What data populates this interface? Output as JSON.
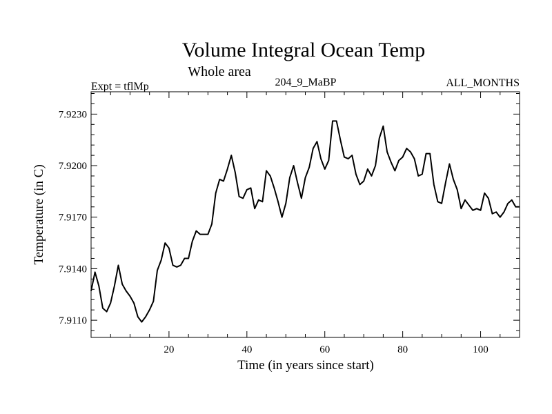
{
  "chart_data": {
    "type": "line",
    "title": "Volume Integral Ocean Temp",
    "subtitle": "Whole area",
    "left_label": "Expt = tflMp",
    "center_label": "204_9_MaBP",
    "right_label": "ALL_MONTHS",
    "xlabel": "Time (in years since start)",
    "ylabel": "Temperature (in C)",
    "xlim": [
      0,
      110
    ],
    "ylim": [
      7.91,
      7.9243
    ],
    "xticks": [
      20,
      40,
      60,
      80,
      100
    ],
    "xtick_labels": [
      "20",
      "40",
      "60",
      "80",
      "100"
    ],
    "yticks": [
      7.911,
      7.914,
      7.917,
      7.92,
      7.923
    ],
    "ytick_labels": [
      "7.9110",
      "7.9140",
      "7.9170",
      "7.9200",
      "7.9230"
    ],
    "series": [
      {
        "name": "Volume Integral Ocean Temp",
        "color": "#000000",
        "x": [
          0,
          1,
          2,
          3,
          4,
          5,
          6,
          7,
          8,
          9,
          10,
          11,
          12,
          13,
          14,
          15,
          16,
          17,
          18,
          19,
          20,
          21,
          22,
          23,
          24,
          25,
          26,
          27,
          28,
          29,
          30,
          31,
          32,
          33,
          34,
          35,
          36,
          37,
          38,
          39,
          40,
          41,
          42,
          43,
          44,
          45,
          46,
          47,
          48,
          49,
          50,
          51,
          52,
          53,
          54,
          55,
          56,
          57,
          58,
          59,
          60,
          61,
          62,
          63,
          64,
          65,
          66,
          67,
          68,
          69,
          70,
          71,
          72,
          73,
          74,
          75,
          76,
          77,
          78,
          79,
          80,
          81,
          82,
          83,
          84,
          85,
          86,
          87,
          88,
          89,
          90,
          91,
          92,
          93,
          94,
          95,
          96,
          97,
          98,
          99,
          100,
          101,
          102,
          103,
          104,
          105,
          106,
          107,
          108,
          109,
          110
        ],
        "values": [
          7.9127,
          7.9138,
          7.913,
          7.9117,
          7.9115,
          7.912,
          7.913,
          7.9142,
          7.9131,
          7.9127,
          7.9124,
          7.912,
          7.9112,
          7.9109,
          7.9112,
          7.9116,
          7.9121,
          7.9139,
          7.9145,
          7.9155,
          7.9152,
          7.9142,
          7.9141,
          7.9142,
          7.9146,
          7.9146,
          7.9156,
          7.9162,
          7.916,
          7.916,
          7.916,
          7.9166,
          7.9184,
          7.9192,
          7.9191,
          7.9198,
          7.9206,
          7.9196,
          7.9182,
          7.9181,
          7.9186,
          7.9187,
          7.9175,
          7.918,
          7.9179,
          7.9197,
          7.9194,
          7.9187,
          7.9179,
          7.917,
          7.9178,
          7.9193,
          7.92,
          7.919,
          7.9181,
          7.9193,
          7.9199,
          7.921,
          7.9214,
          7.9204,
          7.9198,
          7.9203,
          7.9226,
          7.9226,
          7.9215,
          7.9205,
          7.9204,
          7.9206,
          7.9195,
          7.9189,
          7.9191,
          7.9198,
          7.9194,
          7.92,
          7.9216,
          7.9223,
          7.9208,
          7.9202,
          7.9197,
          7.9203,
          7.9205,
          7.921,
          7.9208,
          7.9204,
          7.9194,
          7.9195,
          7.9207,
          7.9207,
          7.9189,
          7.9179,
          7.9178,
          7.919,
          7.9201,
          7.9192,
          7.9186,
          7.9175,
          7.918,
          7.9177,
          7.9174,
          7.9175,
          7.9174,
          7.9184,
          7.9181,
          7.9172,
          7.9173,
          7.917,
          7.9173,
          7.9178,
          7.918,
          7.9176,
          7.9176
        ]
      }
    ]
  }
}
